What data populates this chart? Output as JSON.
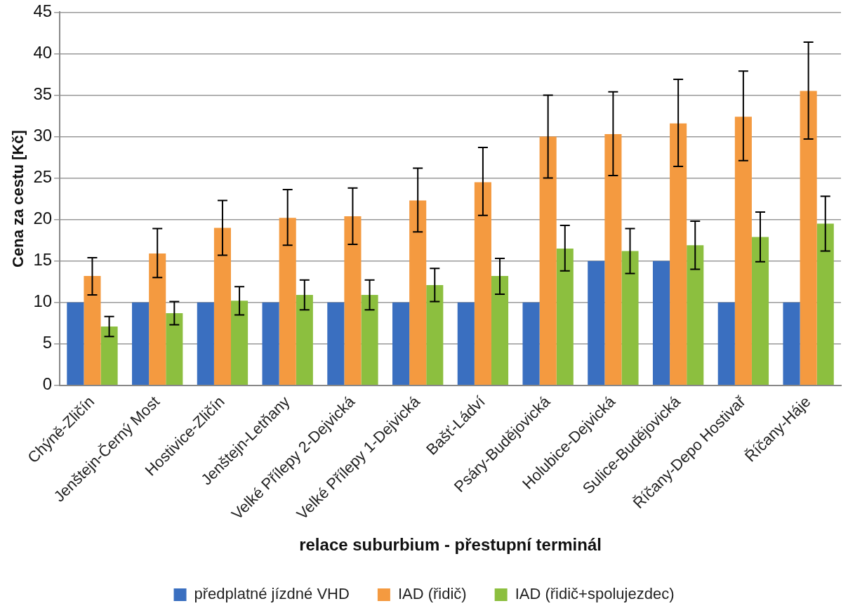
{
  "chart_data": {
    "type": "bar",
    "xlabel": "relace suburbium - přestupní terminál",
    "ylabel": "Cena za cestu [Kč]",
    "categories": [
      "Chýně-Zličín",
      "Jenštejn-Černý Most",
      "Hostivice-Zličín",
      "Jenštejn-Letňany",
      "Velké Přílepy 2-Dejvická",
      "Velké Přílepy 1-Dejvická",
      "Bašť-Ládví",
      "Psáry-Budějovická",
      "Holubice-Dejvická",
      "Sulice-Budějovická",
      "Říčany-Depo Hostivař",
      "Říčany-Háje"
    ],
    "series": [
      {
        "name": "předplatné jízdné VHD",
        "color": "#3a6fc0",
        "values": [
          10,
          10,
          10,
          10,
          10,
          10,
          10,
          10,
          15,
          15,
          10,
          10
        ]
      },
      {
        "name": "IAD (řidič)",
        "color": "#f49a40",
        "values": [
          13.2,
          15.9,
          19.0,
          20.2,
          20.4,
          22.3,
          24.5,
          30.0,
          30.3,
          31.6,
          32.4,
          35.5
        ],
        "errors": [
          [
            10.9,
            15.4
          ],
          [
            13.0,
            18.9
          ],
          [
            15.7,
            22.3
          ],
          [
            16.9,
            23.6
          ],
          [
            17.0,
            23.8
          ],
          [
            18.5,
            26.2
          ],
          [
            20.5,
            28.7
          ],
          [
            25.0,
            35.0
          ],
          [
            25.3,
            35.4
          ],
          [
            26.4,
            36.9
          ],
          [
            27.1,
            37.9
          ],
          [
            29.7,
            41.4
          ]
        ]
      },
      {
        "name": "IAD (řidič+spolujezdec)",
        "color": "#8cbf3f",
        "values": [
          7.1,
          8.7,
          10.2,
          10.9,
          10.9,
          12.1,
          13.2,
          16.5,
          16.2,
          16.9,
          17.9,
          19.5
        ],
        "errors": [
          [
            5.9,
            8.3
          ],
          [
            7.3,
            10.1
          ],
          [
            8.5,
            11.9
          ],
          [
            9.1,
            12.7
          ],
          [
            9.1,
            12.7
          ],
          [
            10.1,
            14.1
          ],
          [
            11.0,
            15.3
          ],
          [
            13.8,
            19.3
          ],
          [
            13.5,
            18.9
          ],
          [
            14.0,
            19.8
          ],
          [
            14.9,
            20.9
          ],
          [
            16.2,
            22.8
          ]
        ]
      }
    ],
    "ylim": [
      0,
      45
    ],
    "yticks": [
      0,
      5,
      10,
      15,
      20,
      25,
      30,
      35,
      40,
      45
    ],
    "grid": "y",
    "legend": "bottom"
  }
}
